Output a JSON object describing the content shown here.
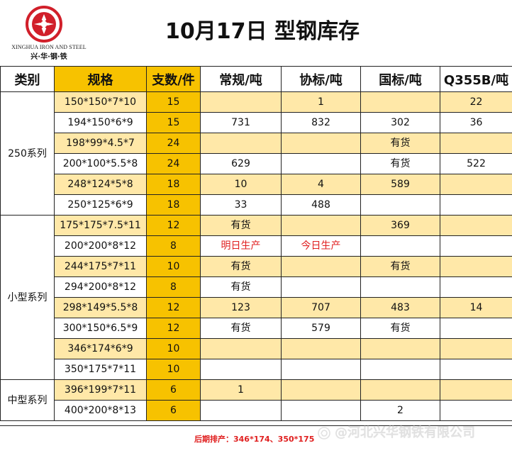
{
  "brand": {
    "english_name": "XINGHUA IRON AND STEEL",
    "chinese_name": "兴·华·钢·铁"
  },
  "page_title": "10月17日 型钢库存",
  "table": {
    "headers": {
      "category": "类别",
      "spec": "规格",
      "count": "支数/件",
      "regular": "常规/吨",
      "association": "协标/吨",
      "national": "国标/吨",
      "q355b": "Q355B/吨"
    },
    "sections": [
      {
        "category": "250系列",
        "rows": [
          {
            "spec": "150*150*7*10",
            "count": "15",
            "regular": "",
            "association": "1",
            "national": "",
            "q355b": "22",
            "shaded": true
          },
          {
            "spec": "194*150*6*9",
            "count": "15",
            "regular": "731",
            "association": "832",
            "national": "302",
            "q355b": "36",
            "shaded": false
          },
          {
            "spec": "198*99*4.5*7",
            "count": "24",
            "regular": "",
            "association": "",
            "national": "有货",
            "q355b": "",
            "shaded": true
          },
          {
            "spec": "200*100*5.5*8",
            "count": "24",
            "regular": "629",
            "association": "",
            "national": "有货",
            "q355b": "522",
            "shaded": false
          },
          {
            "spec": "248*124*5*8",
            "count": "18",
            "regular": "10",
            "association": "4",
            "national": "589",
            "q355b": "",
            "shaded": true
          },
          {
            "spec": "250*125*6*9",
            "count": "18",
            "regular": "33",
            "association": "488",
            "national": "",
            "q355b": "",
            "shaded": false
          }
        ]
      },
      {
        "category": "小型系列",
        "rows": [
          {
            "spec": "175*175*7.5*11",
            "count": "12",
            "regular": "有货",
            "association": "",
            "national": "369",
            "q355b": "",
            "shaded": true
          },
          {
            "spec": "200*200*8*12",
            "count": "8",
            "regular": "明日生产",
            "association": "今日生产",
            "national": "",
            "q355b": "",
            "shaded": false,
            "regular_red": true,
            "association_red": true
          },
          {
            "spec": "244*175*7*11",
            "count": "10",
            "regular": "有货",
            "association": "",
            "national": "有货",
            "q355b": "",
            "shaded": true
          },
          {
            "spec": "294*200*8*12",
            "count": "8",
            "regular": "有货",
            "association": "",
            "national": "",
            "q355b": "",
            "shaded": false
          },
          {
            "spec": "298*149*5.5*8",
            "count": "12",
            "regular": "123",
            "association": "707",
            "national": "483",
            "q355b": "14",
            "shaded": true
          },
          {
            "spec": "300*150*6.5*9",
            "count": "12",
            "regular": "有货",
            "association": "579",
            "national": "有货",
            "q355b": "",
            "shaded": false
          },
          {
            "spec": "346*174*6*9",
            "count": "10",
            "regular": "",
            "association": "",
            "national": "",
            "q355b": "",
            "shaded": true
          },
          {
            "spec": "350*175*7*11",
            "count": "10",
            "regular": "",
            "association": "",
            "national": "",
            "q355b": "",
            "shaded": false
          }
        ]
      },
      {
        "category": "中型系列",
        "rows": [
          {
            "spec": "396*199*7*11",
            "count": "6",
            "regular": "1",
            "association": "",
            "national": "",
            "q355b": "",
            "shaded": true
          },
          {
            "spec": "400*200*8*13",
            "count": "6",
            "regular": "",
            "association": "",
            "national": "2",
            "q355b": "",
            "shaded": false
          }
        ]
      }
    ]
  },
  "footer": {
    "note": "后期排产：346*174、350*175"
  },
  "watermark": {
    "text": "@河北兴华钢铁有限公司"
  },
  "colors": {
    "accent": "#f7c200",
    "shade": "#ffe8a8",
    "red": "#e02020"
  }
}
